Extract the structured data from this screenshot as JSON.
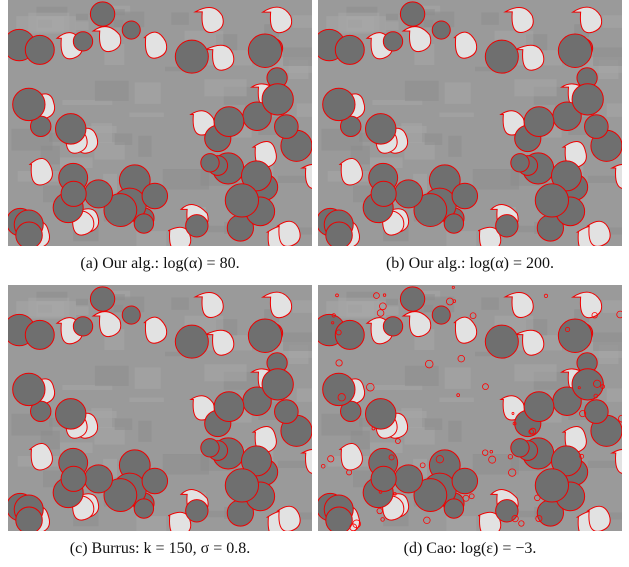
{
  "figure": {
    "panels": [
      {
        "label": "(a)",
        "caption": "Our alg.: log(α) = 80."
      },
      {
        "label": "(b)",
        "caption": "Our alg.: log(α) = 200."
      },
      {
        "label": "(c)",
        "caption": "Burrus: k = 150, σ = 0.8."
      },
      {
        "label": "(d)",
        "caption": "Cao: log(ε) = −3."
      }
    ]
  }
}
